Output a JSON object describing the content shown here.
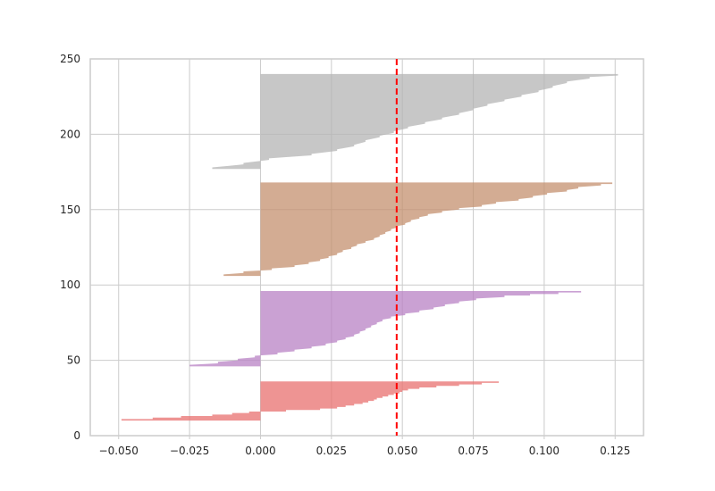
{
  "chart_data": {
    "type": "area",
    "title": "",
    "xlabel": "",
    "ylabel": "",
    "xlim": [
      -0.06,
      0.135
    ],
    "ylim": [
      0,
      250
    ],
    "grid": true,
    "x_ticks": [
      -0.05,
      -0.025,
      0.0,
      0.025,
      0.05,
      0.075,
      0.1,
      0.125
    ],
    "x_tick_labels": [
      "−0.050",
      "−0.025",
      "0.000",
      "0.025",
      "0.050",
      "0.075",
      "0.100",
      "0.125"
    ],
    "y_ticks": [
      0,
      50,
      100,
      150,
      200,
      250
    ],
    "y_tick_labels": [
      "0",
      "50",
      "100",
      "150",
      "200",
      "250"
    ],
    "average_line": {
      "x": 0.048,
      "color": "#ff0000",
      "style": "dashed"
    },
    "clusters": [
      {
        "color": "#e8706f",
        "y_bottom": 10,
        "y_top": 35,
        "points": [
          [
            10,
            -0.049
          ],
          [
            11,
            -0.038
          ],
          [
            12,
            -0.028
          ],
          [
            13,
            -0.017
          ],
          [
            14,
            -0.01
          ],
          [
            15,
            -0.004
          ],
          [
            16,
            0.009
          ],
          [
            17,
            0.021
          ],
          [
            18,
            0.027
          ],
          [
            19,
            0.03
          ],
          [
            20,
            0.033
          ],
          [
            21,
            0.036
          ],
          [
            22,
            0.038
          ],
          [
            23,
            0.04
          ],
          [
            24,
            0.041
          ],
          [
            25,
            0.043
          ],
          [
            26,
            0.045
          ],
          [
            27,
            0.047
          ],
          [
            28,
            0.049
          ],
          [
            29,
            0.05
          ],
          [
            30,
            0.052
          ],
          [
            31,
            0.056
          ],
          [
            32,
            0.062
          ],
          [
            33,
            0.07
          ],
          [
            34,
            0.078
          ],
          [
            35,
            0.084
          ]
        ]
      },
      {
        "color": "#b882c4",
        "y_bottom": 46,
        "y_top": 95,
        "points": [
          [
            46,
            -0.025
          ],
          [
            48,
            -0.015
          ],
          [
            50,
            -0.008
          ],
          [
            52,
            -0.002
          ],
          [
            54,
            0.006
          ],
          [
            56,
            0.012
          ],
          [
            58,
            0.018
          ],
          [
            60,
            0.023
          ],
          [
            62,
            0.027
          ],
          [
            64,
            0.03
          ],
          [
            66,
            0.033
          ],
          [
            68,
            0.035
          ],
          [
            70,
            0.037
          ],
          [
            72,
            0.039
          ],
          [
            74,
            0.041
          ],
          [
            76,
            0.043
          ],
          [
            78,
            0.046
          ],
          [
            80,
            0.051
          ],
          [
            82,
            0.056
          ],
          [
            84,
            0.061
          ],
          [
            86,
            0.065
          ],
          [
            88,
            0.07
          ],
          [
            90,
            0.076
          ],
          [
            92,
            0.086
          ],
          [
            93,
            0.095
          ],
          [
            94,
            0.105
          ],
          [
            95,
            0.113
          ]
        ]
      },
      {
        "color": "#c4906f",
        "y_bottom": 106,
        "y_top": 167,
        "points": [
          [
            106,
            -0.013
          ],
          [
            108,
            -0.006
          ],
          [
            110,
            0.004
          ],
          [
            112,
            0.012
          ],
          [
            114,
            0.017
          ],
          [
            116,
            0.021
          ],
          [
            118,
            0.024
          ],
          [
            120,
            0.027
          ],
          [
            122,
            0.029
          ],
          [
            124,
            0.032
          ],
          [
            126,
            0.034
          ],
          [
            128,
            0.037
          ],
          [
            130,
            0.04
          ],
          [
            132,
            0.042
          ],
          [
            134,
            0.044
          ],
          [
            136,
            0.046
          ],
          [
            138,
            0.048
          ],
          [
            140,
            0.051
          ],
          [
            142,
            0.053
          ],
          [
            144,
            0.056
          ],
          [
            146,
            0.059
          ],
          [
            148,
            0.064
          ],
          [
            150,
            0.07
          ],
          [
            152,
            0.078
          ],
          [
            154,
            0.083
          ],
          [
            156,
            0.091
          ],
          [
            158,
            0.096
          ],
          [
            160,
            0.101
          ],
          [
            162,
            0.108
          ],
          [
            164,
            0.112
          ],
          [
            166,
            0.12
          ],
          [
            167,
            0.124
          ]
        ]
      },
      {
        "color": "#b4b4b4",
        "y_bottom": 177,
        "y_top": 239,
        "points": [
          [
            177,
            -0.017
          ],
          [
            180,
            -0.006
          ],
          [
            183,
            0.003
          ],
          [
            186,
            0.018
          ],
          [
            189,
            0.027
          ],
          [
            192,
            0.033
          ],
          [
            195,
            0.037
          ],
          [
            198,
            0.042
          ],
          [
            201,
            0.047
          ],
          [
            204,
            0.052
          ],
          [
            207,
            0.058
          ],
          [
            210,
            0.064
          ],
          [
            213,
            0.07
          ],
          [
            216,
            0.075
          ],
          [
            219,
            0.08
          ],
          [
            222,
            0.086
          ],
          [
            225,
            0.092
          ],
          [
            228,
            0.098
          ],
          [
            231,
            0.103
          ],
          [
            234,
            0.108
          ],
          [
            237,
            0.116
          ],
          [
            239,
            0.126
          ]
        ]
      }
    ]
  }
}
